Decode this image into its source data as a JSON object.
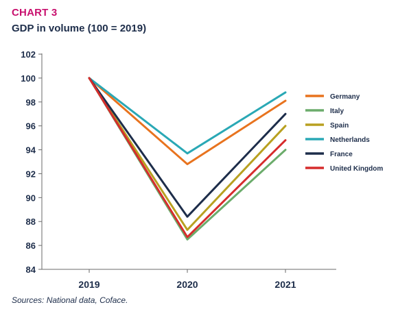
{
  "header": {
    "kicker": "CHART 3",
    "title": "GDP in volume (100 = 2019)"
  },
  "footer": {
    "source": "Sources: National data, Coface."
  },
  "chart_data": {
    "type": "line",
    "title": "GDP in volume (100 = 2019)",
    "xlabel": "",
    "ylabel": "",
    "categories": [
      "2019",
      "2020",
      "2021"
    ],
    "ylim": [
      84,
      102
    ],
    "yticks": [
      84,
      86,
      88,
      90,
      92,
      94,
      96,
      98,
      100,
      102
    ],
    "grid": false,
    "legend_position": "right",
    "series": [
      {
        "name": "Germany",
        "color": "#e8731e",
        "values": [
          100,
          92.8,
          98.1
        ]
      },
      {
        "name": "Italy",
        "color": "#6bac6b",
        "values": [
          100,
          86.5,
          94.0
        ]
      },
      {
        "name": "Spain",
        "color": "#b8a020",
        "values": [
          100,
          87.3,
          96.0
        ]
      },
      {
        "name": "Netherlands",
        "color": "#2aa8b5",
        "values": [
          100,
          93.7,
          98.8
        ]
      },
      {
        "name": "France",
        "color": "#1d2d4a",
        "values": [
          100,
          88.4,
          97.0
        ]
      },
      {
        "name": "United Kingdom",
        "color": "#d62c2c",
        "values": [
          100,
          86.7,
          94.8
        ]
      }
    ]
  }
}
